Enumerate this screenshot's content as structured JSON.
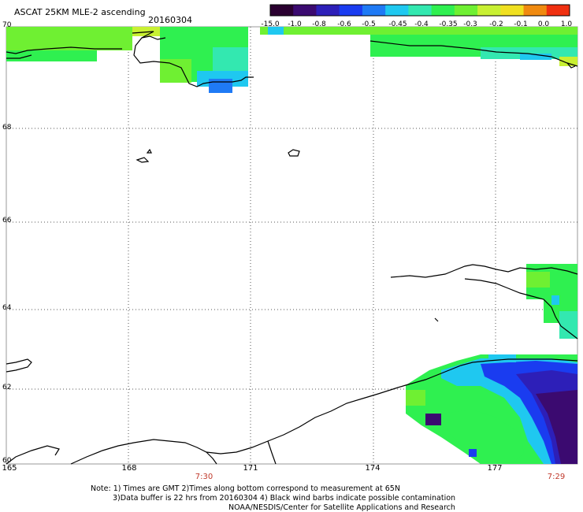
{
  "title": "ASCAT 25KM MLE-2 ascending",
  "date": "20160304",
  "colorbar": {
    "ticks": [
      "-15.0",
      "-1.0",
      "-0.8",
      "-0.6",
      "-0.5",
      "-0.45",
      "-0.4",
      "-0.35",
      "-0.3",
      "-0.2",
      "-0.1",
      "0.0",
      "1.0"
    ],
    "colors": [
      "#2a0030",
      "#3b0a70",
      "#2d1fb8",
      "#1a3cf0",
      "#1f7af5",
      "#1fc8f0",
      "#33e8b0",
      "#2ff050",
      "#6ff032",
      "#c8f032",
      "#f0e020",
      "#f08a10",
      "#f03010"
    ]
  },
  "lat_labels": [
    "70",
    "68",
    "66",
    "64",
    "62",
    "60"
  ],
  "lon_labels": [
    "165",
    "168",
    "171",
    "174",
    "177"
  ],
  "time_labels": [
    "7:30",
    "7:29"
  ],
  "notes": [
    "Note: 1) Times are GMT 2)Times along bottom correspond to measurement at 65N",
    "3)Data buffer is 22 hrs from 20160304 4) Black wind barbs indicate possible contamination",
    "NOAA/NESDIS/Center for Satellite Applications and Research"
  ]
}
